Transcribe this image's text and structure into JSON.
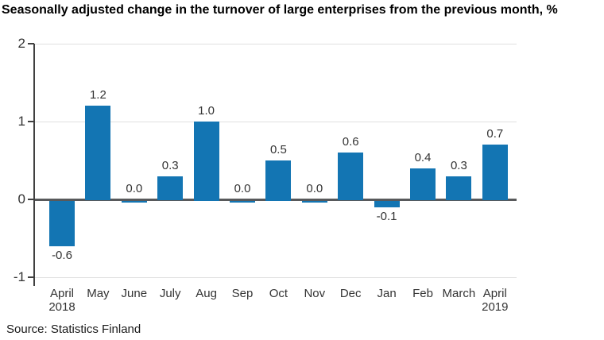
{
  "title": "Seasonally adjusted change in the turnover of large enterprises from the previous month, %",
  "source": "Source: Statistics Finland",
  "colors": {
    "bar": "#1375b3",
    "zero_line": "#58595b",
    "grid": "#e0e0e0",
    "axis": "#404040",
    "text": "#333333"
  },
  "chart_data": {
    "type": "bar",
    "title": "Seasonally adjusted change in the turnover of large enterprises from the previous month, %",
    "categories": [
      "April",
      "May",
      "June",
      "July",
      "Aug",
      "Sep",
      "Oct",
      "Nov",
      "Dec",
      "Jan",
      "Feb",
      "March",
      "April"
    ],
    "category_year_labels": [
      "2018",
      "",
      "",
      "",
      "",
      "",
      "",
      "",
      "",
      "",
      "",
      "",
      "2019"
    ],
    "values": [
      -0.6,
      1.2,
      0.0,
      0.3,
      1.0,
      0.0,
      0.5,
      0.0,
      0.6,
      -0.1,
      0.4,
      0.3,
      0.7
    ],
    "value_labels": [
      "-0.6",
      "1.2",
      "0.0",
      "0.3",
      "1.0",
      "0.0",
      "0.5",
      "0.0",
      "0.6",
      "-0.1",
      "0.4",
      "0.3",
      "0.7"
    ],
    "xlabel": "",
    "ylabel": "",
    "ylim": [
      -1,
      2
    ],
    "ytick_values": [
      2,
      1,
      0,
      -1
    ],
    "ytick_labels": [
      "2",
      "1",
      "0",
      "-1"
    ],
    "grid": true,
    "legend": "none"
  }
}
